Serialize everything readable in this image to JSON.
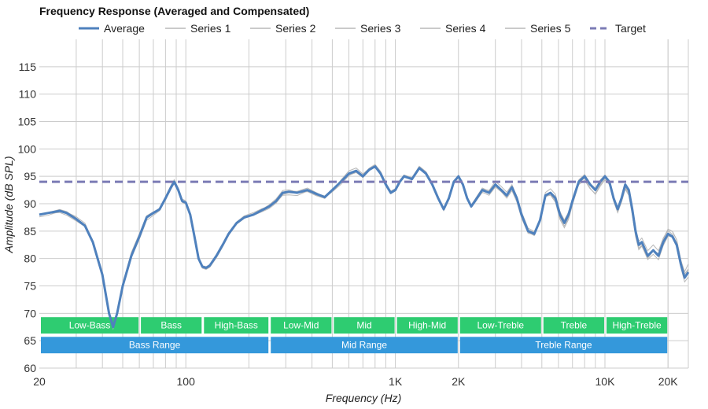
{
  "chart_data": {
    "type": "line",
    "title": "Frequency Response (Averaged and Compensated)",
    "xlabel": "Frequency (Hz)",
    "ylabel": "Amplitude (dB SPL)",
    "x_scale": "log",
    "xlim": [
      20,
      25000
    ],
    "ylim": [
      60,
      120
    ],
    "x_ticks": [
      {
        "value": 20,
        "label": "20"
      },
      {
        "value": 100,
        "label": "100"
      },
      {
        "value": 1000,
        "label": "1K"
      },
      {
        "value": 2000,
        "label": "2K"
      },
      {
        "value": 10000,
        "label": "10K"
      },
      {
        "value": 20000,
        "label": "20K"
      }
    ],
    "y_ticks": [
      60,
      65,
      70,
      75,
      80,
      85,
      90,
      95,
      100,
      105,
      110,
      115
    ],
    "grid": true,
    "legend_position": "top",
    "colors": {
      "average": "#4f81bd",
      "series": "#b8b8b8",
      "target": "#7b7bb5",
      "bands_green": "#2ecc71",
      "bands_blue": "#3498db",
      "grid": "#cccccc"
    },
    "target": {
      "name": "Target",
      "value": 94
    },
    "series": [
      {
        "name": "Average",
        "role": "average",
        "points": [
          [
            20,
            88
          ],
          [
            22,
            88.3
          ],
          [
            25,
            88.7
          ],
          [
            27,
            88.3
          ],
          [
            30,
            87.2
          ],
          [
            33,
            86
          ],
          [
            36,
            83
          ],
          [
            40,
            77
          ],
          [
            43,
            70
          ],
          [
            45,
            67.5
          ],
          [
            47,
            70
          ],
          [
            50,
            75
          ],
          [
            55,
            80.5
          ],
          [
            60,
            84
          ],
          [
            65,
            87.5
          ],
          [
            70,
            88.3
          ],
          [
            75,
            89
          ],
          [
            80,
            91
          ],
          [
            85,
            93
          ],
          [
            88,
            94
          ],
          [
            92,
            92.5
          ],
          [
            96,
            90.5
          ],
          [
            100,
            90.2
          ],
          [
            105,
            88
          ],
          [
            110,
            84
          ],
          [
            115,
            80
          ],
          [
            120,
            78.5
          ],
          [
            125,
            78.3
          ],
          [
            130,
            78.7
          ],
          [
            140,
            80.5
          ],
          [
            150,
            82.5
          ],
          [
            160,
            84.5
          ],
          [
            175,
            86.5
          ],
          [
            190,
            87.5
          ],
          [
            210,
            88
          ],
          [
            230,
            88.8
          ],
          [
            250,
            89.5
          ],
          [
            270,
            90.5
          ],
          [
            290,
            92
          ],
          [
            310,
            92.2
          ],
          [
            340,
            92
          ],
          [
            380,
            92.5
          ],
          [
            420,
            91.8
          ],
          [
            460,
            91.2
          ],
          [
            500,
            92.5
          ],
          [
            550,
            94
          ],
          [
            600,
            95.5
          ],
          [
            650,
            96
          ],
          [
            700,
            95
          ],
          [
            750,
            96.2
          ],
          [
            800,
            96.8
          ],
          [
            850,
            95.5
          ],
          [
            900,
            93.5
          ],
          [
            950,
            92
          ],
          [
            1000,
            92.5
          ],
          [
            1050,
            94
          ],
          [
            1100,
            95
          ],
          [
            1200,
            94.5
          ],
          [
            1300,
            96.5
          ],
          [
            1400,
            95.5
          ],
          [
            1500,
            93.5
          ],
          [
            1600,
            91
          ],
          [
            1700,
            89
          ],
          [
            1800,
            91
          ],
          [
            1900,
            94
          ],
          [
            2000,
            95
          ],
          [
            2100,
            93.5
          ],
          [
            2200,
            91
          ],
          [
            2300,
            89.5
          ],
          [
            2400,
            90.5
          ],
          [
            2600,
            92.5
          ],
          [
            2800,
            92
          ],
          [
            3000,
            93.5
          ],
          [
            3200,
            92.5
          ],
          [
            3400,
            91.5
          ],
          [
            3600,
            93
          ],
          [
            3800,
            91
          ],
          [
            4000,
            88
          ],
          [
            4300,
            85
          ],
          [
            4600,
            84.5
          ],
          [
            4900,
            87
          ],
          [
            5200,
            91.5
          ],
          [
            5500,
            92
          ],
          [
            5800,
            91
          ],
          [
            6100,
            88
          ],
          [
            6400,
            86.5
          ],
          [
            6700,
            88
          ],
          [
            7000,
            90.5
          ],
          [
            7500,
            94
          ],
          [
            8000,
            95
          ],
          [
            8500,
            93.5
          ],
          [
            9000,
            92.5
          ],
          [
            9500,
            94
          ],
          [
            10000,
            95
          ],
          [
            10500,
            94
          ],
          [
            11000,
            91
          ],
          [
            11500,
            89
          ],
          [
            12000,
            91
          ],
          [
            12500,
            93.5
          ],
          [
            13000,
            92.5
          ],
          [
            13500,
            89
          ],
          [
            14000,
            85
          ],
          [
            14500,
            82.5
          ],
          [
            15000,
            83
          ],
          [
            16000,
            80.5
          ],
          [
            17000,
            81.5
          ],
          [
            18000,
            80.5
          ],
          [
            19000,
            83
          ],
          [
            20000,
            84.5
          ],
          [
            21000,
            84
          ],
          [
            22000,
            82.5
          ],
          [
            23000,
            79
          ],
          [
            24000,
            76.5
          ],
          [
            25000,
            77.5
          ]
        ]
      },
      {
        "name": "Series 1",
        "role": "series",
        "offset": [
          0.8,
          -0.5,
          1.2,
          -1.6,
          2.1
        ]
      },
      {
        "name": "Series 2",
        "role": "series",
        "offset": [
          -0.9,
          1.1,
          -1.3,
          1.9,
          -2.0
        ]
      },
      {
        "name": "Series 3",
        "role": "series",
        "offset": [
          0.5,
          -1.2,
          0.7,
          1.4,
          -1.5
        ]
      },
      {
        "name": "Series 4",
        "role": "series",
        "offset": [
          -0.6,
          0.8,
          1.5,
          -2.2,
          1.8
        ]
      },
      {
        "name": "Series 5",
        "role": "series",
        "offset": [
          1.0,
          0.4,
          -0.9,
          1.1,
          2.4
        ]
      }
    ],
    "bands_upper": [
      {
        "label": "Low-Bass",
        "from": 20,
        "to": 60
      },
      {
        "label": "Bass",
        "from": 60,
        "to": 120
      },
      {
        "label": "High-Bass",
        "from": 120,
        "to": 250
      },
      {
        "label": "Low-Mid",
        "from": 250,
        "to": 500
      },
      {
        "label": "Mid",
        "from": 500,
        "to": 1000
      },
      {
        "label": "High-Mid",
        "from": 1000,
        "to": 2000
      },
      {
        "label": "Low-Treble",
        "from": 2000,
        "to": 5000
      },
      {
        "label": "Treble",
        "from": 5000,
        "to": 10000
      },
      {
        "label": "High-Treble",
        "from": 10000,
        "to": 20000
      }
    ],
    "bands_lower": [
      {
        "label": "Bass Range",
        "from": 20,
        "to": 250
      },
      {
        "label": "Mid Range",
        "from": 250,
        "to": 2000
      },
      {
        "label": "Treble Range",
        "from": 2000,
        "to": 20000
      }
    ]
  }
}
